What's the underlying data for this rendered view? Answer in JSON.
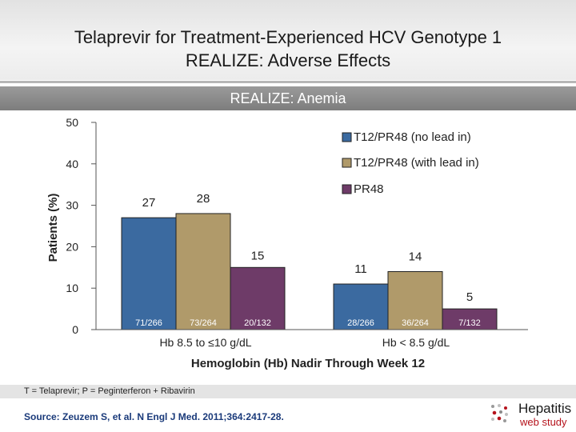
{
  "slide": {
    "title_line1": "Telaprevir for Treatment-Experienced HCV Genotype 1",
    "title_line2": "REALIZE: Adverse Effects",
    "subtitle": "REALIZE: Anemia",
    "footnote": "T = Telaprevir;  P = Peginterferon + Ribavirin",
    "source": "Source: Zeuzem S, et al.  N Engl J Med.  2011;364:2417-28.",
    "logo": {
      "line1": "Hepatitis",
      "line2": "web study",
      "icon": "hepatitis-logo-icon"
    }
  },
  "chart_data": {
    "type": "bar",
    "ylabel": "Patients (%)",
    "xlabel": "Hemoglobin (Hb) Nadir Through Week 12",
    "ylim": [
      0,
      50
    ],
    "yticks": [
      0,
      10,
      20,
      30,
      40,
      50
    ],
    "grid": false,
    "legend_position": "top-right",
    "categories": [
      "Hb 8.5 to ≤10 g/dL",
      "Hb < 8.5 g/dL"
    ],
    "series": [
      {
        "name": "T12/PR48 (no lead in)",
        "color": "#3b6aa0",
        "values": [
          27,
          11
        ],
        "counts": [
          "71/266",
          "28/266"
        ]
      },
      {
        "name": "T12/PR48 (with lead in)",
        "color": "#b09a6a",
        "values": [
          28,
          14
        ],
        "counts": [
          "73/264",
          "36/264"
        ]
      },
      {
        "name": "PR48",
        "color": "#6e3b68",
        "values": [
          15,
          5
        ],
        "counts": [
          "20/132",
          "7/132"
        ]
      }
    ]
  }
}
